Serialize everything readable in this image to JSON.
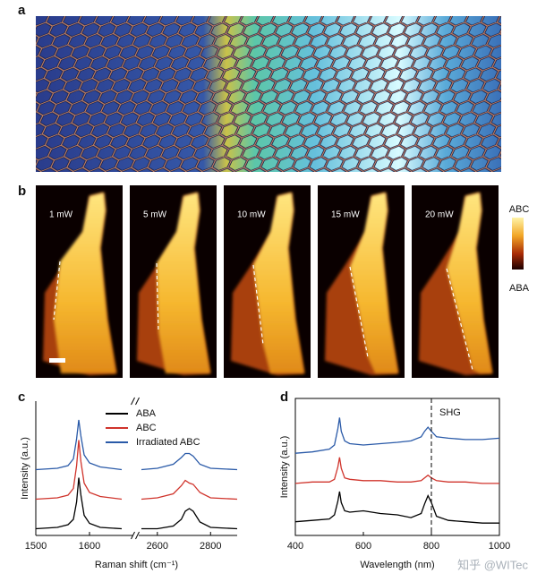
{
  "panel_a": {
    "label": "a"
  },
  "panel_b": {
    "label": "b",
    "images": [
      "1 mW",
      "5 mW",
      "10 mW",
      "15 mW",
      "20 mW"
    ],
    "colorbar": {
      "top": "ABC",
      "bottom": "ABA"
    }
  },
  "panel_c": {
    "label": "c"
  },
  "panel_d": {
    "label": "d"
  },
  "chart_data": [
    {
      "type": "line",
      "xlabel": "Raman shift (cm⁻¹)",
      "ylabel": "Intensity (a.u.)",
      "x": [
        1500,
        1540,
        1560,
        1570,
        1576,
        1580,
        1584,
        1590,
        1600,
        1620,
        1660,
        2540,
        2600,
        2660,
        2690,
        2705,
        2720,
        2735,
        2760,
        2800,
        2900
      ],
      "xlim": [
        [
          1500,
          1680
        ],
        [
          2530,
          2900
        ]
      ],
      "xticks": [
        1500,
        1600,
        2600,
        2800
      ],
      "ylim": [
        0,
        10
      ],
      "series": [
        {
          "name": "ABA",
          "color": "#000000",
          "values": [
            0.5,
            0.6,
            0.8,
            1.2,
            2.5,
            4.3,
            3.0,
            1.5,
            0.9,
            0.6,
            0.5,
            0.5,
            0.5,
            0.7,
            1.2,
            1.8,
            2.0,
            1.8,
            1.0,
            0.6,
            0.5
          ]
        },
        {
          "name": "ABC",
          "color": "#d0342c",
          "values": [
            2.7,
            2.8,
            3.0,
            3.5,
            5.2,
            7.1,
            5.5,
            3.9,
            3.2,
            2.9,
            2.7,
            2.7,
            2.8,
            3.1,
            3.7,
            4.1,
            3.9,
            3.8,
            3.2,
            2.8,
            2.7
          ]
        },
        {
          "name": "Irradiated ABC",
          "color": "#2a5aa8",
          "values": [
            4.9,
            5.0,
            5.2,
            5.7,
            7.2,
            8.6,
            7.4,
            6.0,
            5.4,
            5.1,
            4.9,
            4.9,
            5.0,
            5.3,
            5.8,
            6.1,
            6.1,
            5.9,
            5.3,
            5.0,
            4.9
          ]
        }
      ]
    },
    {
      "type": "line",
      "xlabel": "Wavelength (nm)",
      "ylabel": "Intensity (a.u.)",
      "x": [
        400,
        450,
        500,
        515,
        525,
        530,
        535,
        545,
        560,
        600,
        650,
        700,
        740,
        770,
        780,
        790,
        800,
        815,
        850,
        900,
        950,
        1000
      ],
      "xlim": [
        400,
        1000
      ],
      "xticks": [
        400,
        600,
        800,
        1000
      ],
      "ylim": [
        0,
        10
      ],
      "vline": {
        "x": 800,
        "label": "SHG"
      },
      "series": [
        {
          "color": "#000000",
          "values": [
            1.0,
            1.1,
            1.2,
            1.5,
            2.5,
            3.2,
            2.4,
            1.8,
            1.7,
            1.8,
            1.6,
            1.5,
            1.3,
            1.6,
            2.3,
            2.9,
            2.4,
            1.4,
            1.1,
            1.0,
            0.9,
            0.9
          ]
        },
        {
          "color": "#d0342c",
          "values": [
            3.8,
            3.9,
            3.9,
            4.1,
            5.0,
            5.7,
            4.9,
            4.2,
            4.1,
            4.0,
            4.0,
            3.9,
            3.9,
            4.0,
            4.2,
            4.4,
            4.2,
            4.0,
            3.9,
            3.9,
            3.8,
            3.8
          ]
        },
        {
          "color": "#2a5aa8",
          "values": [
            6.0,
            6.1,
            6.3,
            6.6,
            7.8,
            8.6,
            7.6,
            6.9,
            6.7,
            6.6,
            6.7,
            6.8,
            6.9,
            7.2,
            7.6,
            7.9,
            7.6,
            7.2,
            7.1,
            7.0,
            7.0,
            7.1
          ]
        }
      ]
    }
  ],
  "watermark": "知乎 @WITec"
}
